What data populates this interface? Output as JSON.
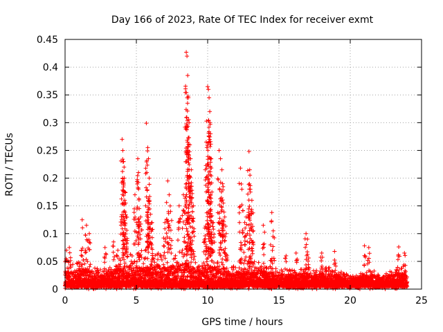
{
  "chart_data": {
    "type": "scatter",
    "title": "Day 166 of 2023, Rate Of TEC Index for receiver exmt",
    "xlabel": "GPS time / hours",
    "ylabel": "ROTI / TECUs",
    "xlim": [
      0,
      25
    ],
    "ylim": [
      0,
      0.45
    ],
    "xticks": [
      "0",
      "5",
      "10",
      "15",
      "20",
      "25"
    ],
    "yticks": [
      "0",
      "0.05",
      "0.1",
      "0.15",
      "0.2",
      "0.25",
      "0.3",
      "0.35",
      "0.4",
      "0.45"
    ],
    "grid": true,
    "marker": "+",
    "color": "#ff0000",
    "baseline_envelope": [
      [
        0.0,
        0.04
      ],
      [
        0.5,
        0.045
      ],
      [
        1.0,
        0.05
      ],
      [
        1.5,
        0.055
      ],
      [
        2.0,
        0.04
      ],
      [
        2.5,
        0.035
      ],
      [
        3.0,
        0.04
      ],
      [
        3.5,
        0.05
      ],
      [
        4.0,
        0.06
      ],
      [
        4.5,
        0.065
      ],
      [
        5.0,
        0.06
      ],
      [
        5.5,
        0.055
      ],
      [
        6.0,
        0.06
      ],
      [
        6.5,
        0.065
      ],
      [
        7.0,
        0.06
      ],
      [
        7.5,
        0.06
      ],
      [
        8.0,
        0.065
      ],
      [
        8.5,
        0.07
      ],
      [
        9.0,
        0.055
      ],
      [
        9.5,
        0.05
      ],
      [
        10.0,
        0.06
      ],
      [
        10.5,
        0.06
      ],
      [
        11.0,
        0.055
      ],
      [
        11.5,
        0.045
      ],
      [
        12.0,
        0.04
      ],
      [
        12.5,
        0.045
      ],
      [
        13.0,
        0.05
      ],
      [
        13.5,
        0.05
      ],
      [
        14.0,
        0.045
      ],
      [
        14.5,
        0.04
      ],
      [
        15.0,
        0.035
      ],
      [
        15.5,
        0.035
      ],
      [
        16.0,
        0.035
      ],
      [
        16.5,
        0.04
      ],
      [
        17.0,
        0.04
      ],
      [
        17.5,
        0.035
      ],
      [
        18.0,
        0.04
      ],
      [
        18.5,
        0.04
      ],
      [
        19.0,
        0.035
      ],
      [
        19.5,
        0.03
      ],
      [
        20.0,
        0.025
      ],
      [
        20.5,
        0.025
      ],
      [
        21.0,
        0.035
      ],
      [
        21.5,
        0.035
      ],
      [
        22.0,
        0.03
      ],
      [
        22.5,
        0.03
      ],
      [
        23.0,
        0.035
      ],
      [
        23.5,
        0.04
      ],
      [
        24.0,
        0.035
      ]
    ],
    "spikes": [
      [
        0.1,
        0.07
      ],
      [
        0.3,
        0.075
      ],
      [
        1.2,
        0.125
      ],
      [
        1.5,
        0.115
      ],
      [
        1.7,
        0.1
      ],
      [
        2.8,
        0.075
      ],
      [
        3.4,
        0.085
      ],
      [
        3.7,
        0.07
      ],
      [
        4.0,
        0.27
      ],
      [
        4.05,
        0.25
      ],
      [
        4.1,
        0.23
      ],
      [
        4.15,
        0.2
      ],
      [
        4.2,
        0.175
      ],
      [
        4.25,
        0.155
      ],
      [
        4.3,
        0.13
      ],
      [
        4.9,
        0.17
      ],
      [
        5.1,
        0.235
      ],
      [
        5.15,
        0.21
      ],
      [
        5.2,
        0.145
      ],
      [
        5.3,
        0.13
      ],
      [
        5.7,
        0.299
      ],
      [
        5.8,
        0.255
      ],
      [
        5.85,
        0.235
      ],
      [
        5.9,
        0.2
      ],
      [
        6.0,
        0.135
      ],
      [
        6.1,
        0.12
      ],
      [
        7.2,
        0.195
      ],
      [
        7.3,
        0.17
      ],
      [
        7.4,
        0.14
      ],
      [
        7.0,
        0.12
      ],
      [
        8.0,
        0.15
      ],
      [
        8.3,
        0.17
      ],
      [
        8.5,
        0.427
      ],
      [
        8.55,
        0.42
      ],
      [
        8.6,
        0.385
      ],
      [
        8.65,
        0.345
      ],
      [
        8.7,
        0.3
      ],
      [
        8.75,
        0.26
      ],
      [
        8.8,
        0.235
      ],
      [
        8.85,
        0.215
      ],
      [
        8.9,
        0.165
      ],
      [
        9.0,
        0.15
      ],
      [
        9.9,
        0.265
      ],
      [
        10.0,
        0.365
      ],
      [
        10.05,
        0.36
      ],
      [
        10.1,
        0.345
      ],
      [
        10.15,
        0.32
      ],
      [
        10.2,
        0.28
      ],
      [
        10.25,
        0.235
      ],
      [
        10.3,
        0.175
      ],
      [
        10.4,
        0.12
      ],
      [
        9.8,
        0.11
      ],
      [
        10.8,
        0.25
      ],
      [
        10.9,
        0.235
      ],
      [
        11.0,
        0.215
      ],
      [
        11.05,
        0.19
      ],
      [
        11.1,
        0.155
      ],
      [
        11.2,
        0.13
      ],
      [
        11.3,
        0.1
      ],
      [
        12.3,
        0.218
      ],
      [
        12.4,
        0.18
      ],
      [
        12.6,
        0.12
      ],
      [
        12.7,
        0.13
      ],
      [
        12.9,
        0.248
      ],
      [
        12.95,
        0.215
      ],
      [
        13.0,
        0.175
      ],
      [
        13.1,
        0.16
      ],
      [
        13.2,
        0.105
      ],
      [
        13.9,
        0.115
      ],
      [
        14.5,
        0.138
      ],
      [
        14.6,
        0.105
      ],
      [
        15.5,
        0.06
      ],
      [
        16.2,
        0.065
      ],
      [
        16.9,
        0.1
      ],
      [
        17.0,
        0.09
      ],
      [
        18.0,
        0.065
      ],
      [
        18.9,
        0.068
      ],
      [
        21.0,
        0.078
      ],
      [
        21.3,
        0.075
      ],
      [
        23.4,
        0.076
      ],
      [
        23.8,
        0.065
      ]
    ]
  }
}
